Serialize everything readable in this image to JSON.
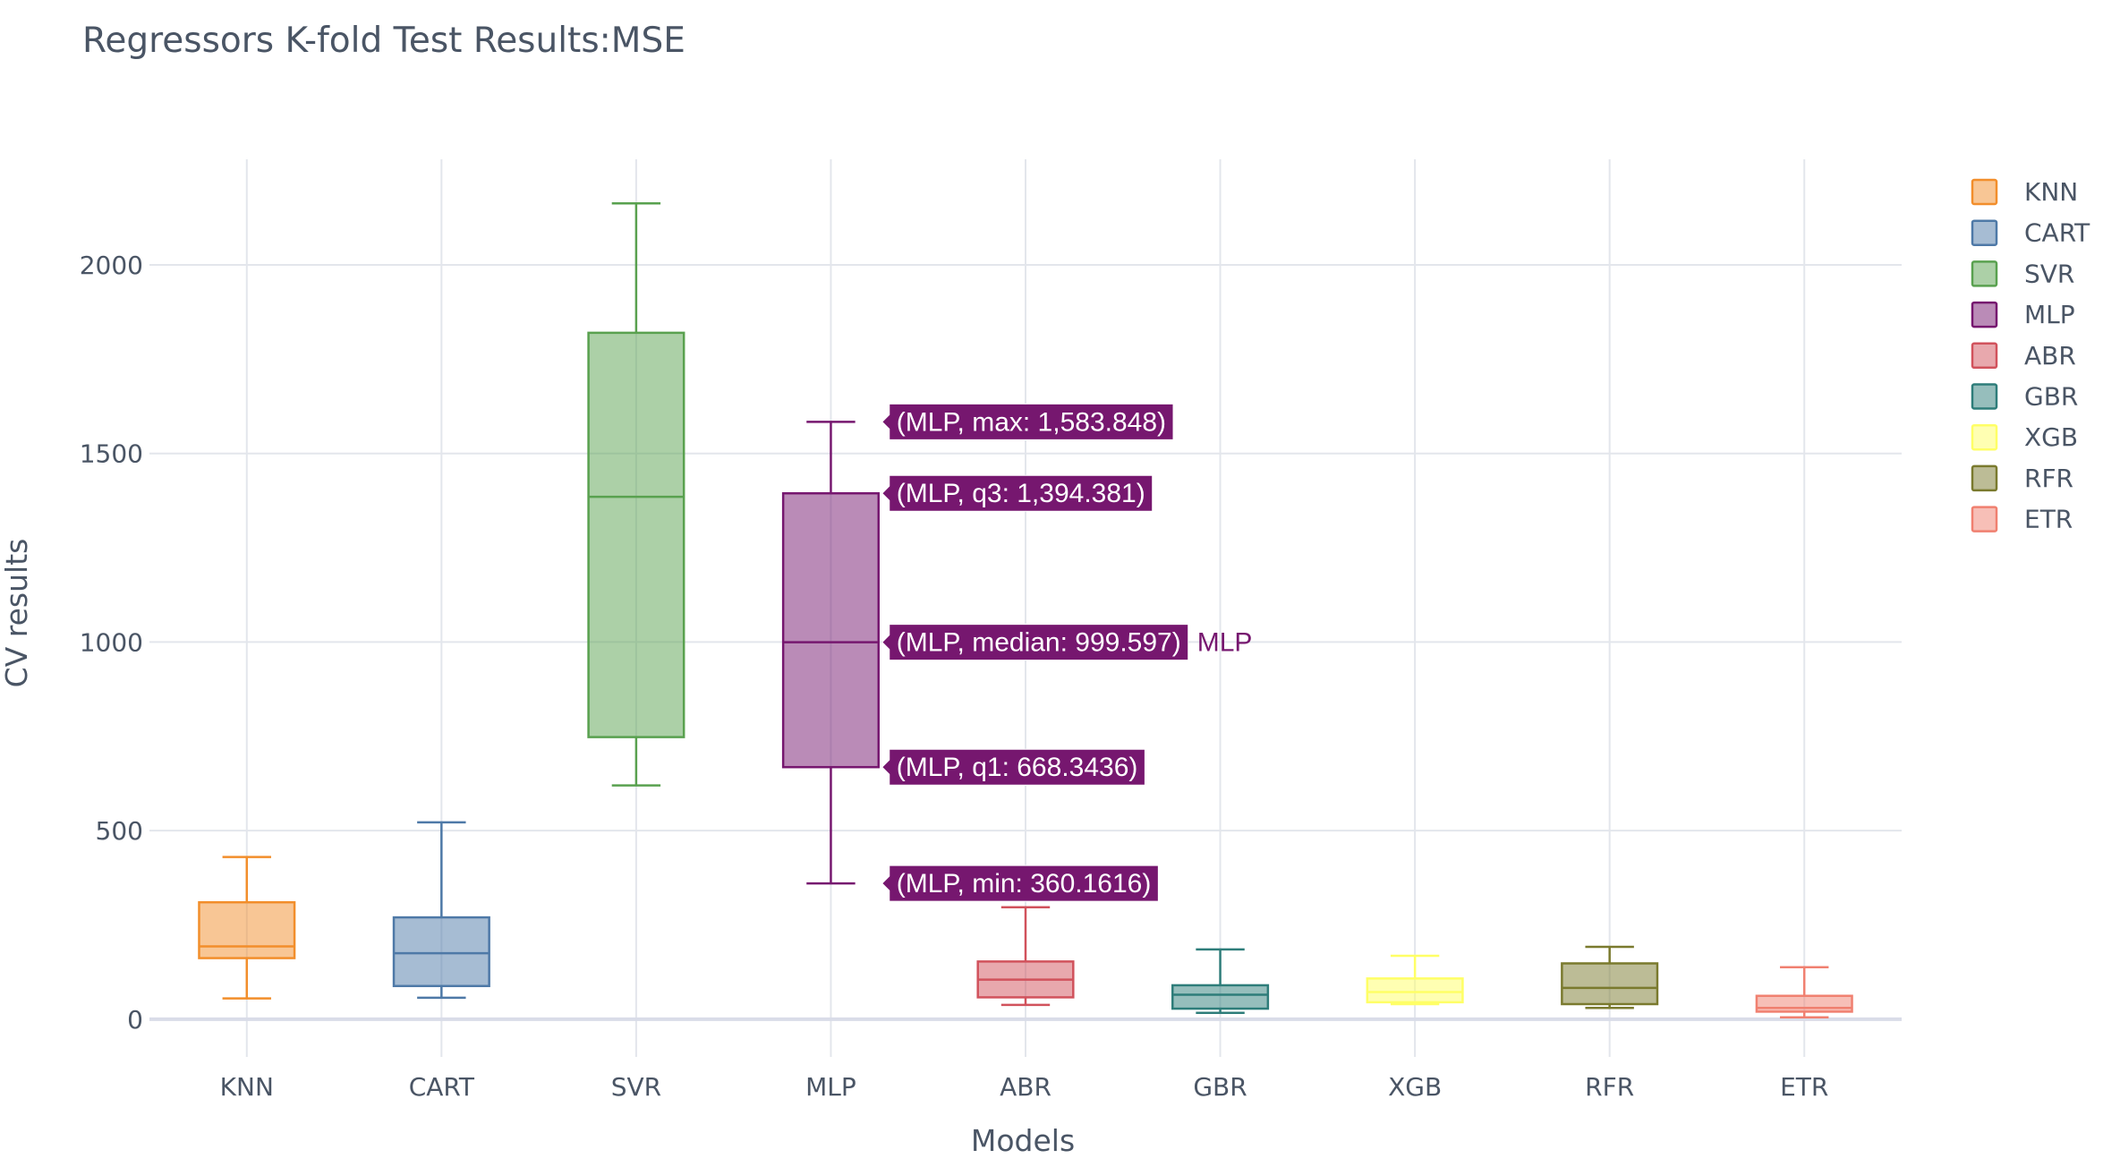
{
  "chart_data": {
    "type": "box",
    "title": "Regressors K-fold Test Results:MSE",
    "xlabel": "Models",
    "ylabel": "CV results",
    "ylim": [
      -100,
      2280
    ],
    "yticks": [
      0,
      500,
      1000,
      1500,
      2000
    ],
    "grid": true,
    "legend_position": "top-right",
    "categories": [
      "KNN",
      "CART",
      "SVR",
      "MLP",
      "ABR",
      "GBR",
      "XGB",
      "RFR",
      "ETR"
    ],
    "series": [
      {
        "name": "KNN",
        "color": "#f28e2b",
        "min": 55,
        "q1": 162,
        "median": 193,
        "q3": 310,
        "max": 430
      },
      {
        "name": "CART",
        "color": "#4e79a7",
        "min": 57,
        "q1": 88,
        "median": 175,
        "q3": 270,
        "max": 522
      },
      {
        "name": "SVR",
        "color": "#59a14f",
        "min": 620,
        "q1": 748,
        "median": 1385,
        "q3": 1820,
        "max": 2163
      },
      {
        "name": "MLP",
        "color": "#76176f",
        "min": 360.1616,
        "q1": 668.3436,
        "median": 999.597,
        "q3": 1394.381,
        "max": 1583.848
      },
      {
        "name": "ABR",
        "color": "#d1525c",
        "min": 38,
        "q1": 58,
        "median": 105,
        "q3": 153,
        "max": 297
      },
      {
        "name": "GBR",
        "color": "#2e7d7a",
        "min": 17,
        "q1": 28,
        "median": 65,
        "q3": 90,
        "max": 185
      },
      {
        "name": "XGB",
        "color": "#ffff66",
        "min": 40,
        "q1": 45,
        "median": 72,
        "q3": 108,
        "max": 168
      },
      {
        "name": "RFR",
        "color": "#7a7a2e",
        "min": 30,
        "q1": 40,
        "median": 83,
        "q3": 148,
        "max": 192
      },
      {
        "name": "ETR",
        "color": "#f08070",
        "min": 5,
        "q1": 20,
        "median": 30,
        "q3": 62,
        "max": 138
      }
    ],
    "hover": {
      "series": "MLP",
      "labels": [
        {
          "key": "max",
          "text": "(MLP, max: 1,583.848)"
        },
        {
          "key": "q3",
          "text": "(MLP, q3: 1,394.381)"
        },
        {
          "key": "median",
          "text": "(MLP, median: 999.597)"
        },
        {
          "key": "q1",
          "text": "(MLP, q1: 668.3436)"
        },
        {
          "key": "min",
          "text": "(MLP, min: 360.1616)"
        }
      ],
      "trace_name": "MLP"
    }
  }
}
